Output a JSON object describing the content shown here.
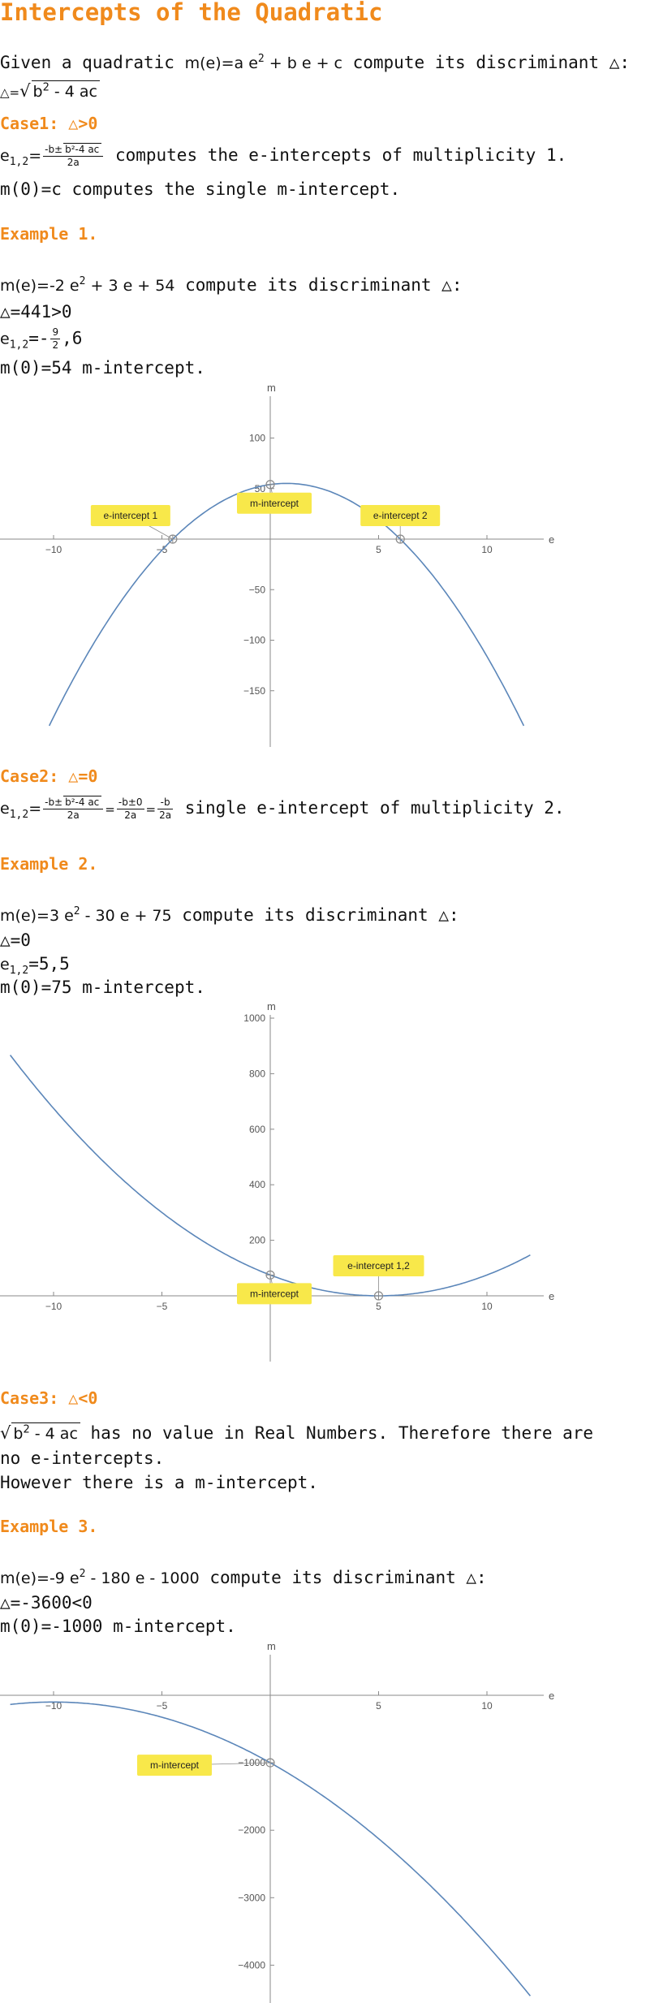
{
  "title": "Intercepts of the Quadratic",
  "intro": {
    "lead": "Given a quadratic ",
    "func": "m(e)=a e",
    "exp": "2",
    "rest": " + b e + c",
    "tail": " compute its discriminant △:",
    "disc_prefix": "△=",
    "disc_rad_a": "b",
    "disc_rad_exp": "2",
    "disc_rad_b": " - 4 ac"
  },
  "case1": {
    "heading": "Case1: △>0",
    "lhs": "e",
    "lhs_sub": "1,2",
    "eq": "=",
    "frac_num_a": "-b±",
    "frac_num_rad": "b²-4 ac",
    "frac_den": "2a",
    "tail": " computes the e-intercepts of multiplicity 1.",
    "line2_func": "m(0)=c",
    "line2_tail": " computes the single m-intercept."
  },
  "example1": {
    "heading": "Example 1.",
    "func": "m(e)=-2 e",
    "exp": "2",
    "rest": " + 3 e + 54",
    "tail": " compute its discriminant △:",
    "disc": "△=441>0",
    "roots_lhs": "e",
    "roots_sub": "1,2",
    "roots_eq": "=-",
    "roots_frac_num": "9",
    "roots_frac_den": "2",
    "roots_tail": ",6",
    "m_val": "m(0)=54",
    "m_tail": " m-intercept."
  },
  "case2": {
    "heading": "Case2: △=0",
    "lhs": "e",
    "lhs_sub": "1,2",
    "eq": "=",
    "frac1_num_a": "-b±",
    "frac1_num_rad": "b²-4 ac",
    "frac1_den": "2a",
    "eq2": "=",
    "frac2_num": "-b±0",
    "frac2_den": "2a",
    "eq3": "=",
    "frac3_num": "-b",
    "frac3_den": "2a",
    "tail": " single e-intercept of multiplicity 2."
  },
  "example2": {
    "heading": "Example 2.",
    "func": "m(e)=3 e",
    "exp": "2",
    "rest": " - 30 e + 75",
    "tail": " compute its discriminant △:",
    "disc": "△=0",
    "roots_lhs": "e",
    "roots_sub": "1,2",
    "roots_val": "=5,5",
    "m_val": "m(0)=75",
    "m_tail": " m-intercept."
  },
  "case3": {
    "heading": "Case3: △<0",
    "rad_a": "b",
    "rad_exp": "2",
    "rad_b": " - 4 ac",
    "tail": " has no value in Real Numbers. Therefore there are",
    "line2": "no e-intercepts.",
    "line3": "However there is a m-intercept."
  },
  "example3": {
    "heading": "Example 3.",
    "func": "m(e)=-9 e",
    "exp": "2",
    "rest": " - 180 e - 1000",
    "tail": " compute its discriminant △:",
    "disc": "△=-3600<0",
    "m_val": "m(0)=-1000",
    "m_tail": " m-intercept."
  },
  "chart_data": [
    {
      "type": "line",
      "function": "m(e)=-2e^2+3e+54",
      "coefficients": {
        "a": -2,
        "b": 3,
        "c": 54
      },
      "xlabel": "e",
      "ylabel": "m",
      "xlim": [
        -12,
        12
      ],
      "ylim": [
        -185,
        140
      ],
      "x_ticks": [
        -10,
        -5,
        5,
        10
      ],
      "y_ticks": [
        100,
        50,
        -50,
        -100,
        -150
      ],
      "grid": false,
      "curve_color": "#5b86b9",
      "label_color": "#f8e84a",
      "intercepts": [
        {
          "x": -4.5,
          "y": 0,
          "label": "e-intercept 1"
        },
        {
          "x": 6,
          "y": 0,
          "label": "e-intercept 2"
        },
        {
          "x": 0,
          "y": 54,
          "label": "m-intercept"
        }
      ]
    },
    {
      "type": "line",
      "function": "m(e)=3e^2-30e+75",
      "coefficients": {
        "a": 3,
        "b": -30,
        "c": 75
      },
      "xlabel": "e",
      "ylabel": "m",
      "xlim": [
        -12,
        12
      ],
      "ylim": [
        -180,
        1080
      ],
      "x_ticks": [
        -10,
        -5,
        5,
        10
      ],
      "y_ticks": [
        200,
        400,
        600,
        800,
        1000
      ],
      "grid": false,
      "curve_color": "#5b86b9",
      "label_color": "#f8e84a",
      "intercepts": [
        {
          "x": 5,
          "y": 0,
          "label": "e-intercept 1,2"
        },
        {
          "x": 0,
          "y": 75,
          "label": "m-intercept"
        }
      ]
    },
    {
      "type": "line",
      "function": "m(e)=-9e^2-180e-1000",
      "coefficients": {
        "a": -9,
        "b": -180,
        "c": -1000
      },
      "xlabel": "e",
      "ylabel": "m",
      "xlim": [
        -12,
        12
      ],
      "ylim": [
        -4750,
        150
      ],
      "x_ticks": [
        -10,
        -5,
        5,
        10
      ],
      "y_ticks": [
        -1000,
        -2000,
        -3000,
        -4000
      ],
      "grid": false,
      "curve_color": "#5b86b9",
      "label_color": "#f8e84a",
      "intercepts": [
        {
          "x": 0,
          "y": -1000,
          "label": "m-intercept"
        }
      ]
    }
  ]
}
